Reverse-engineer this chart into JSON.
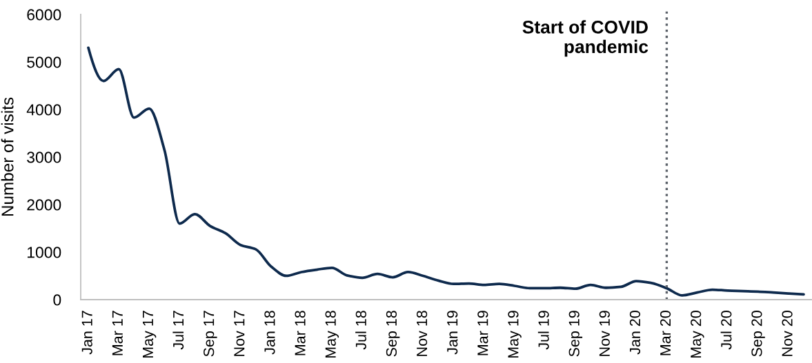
{
  "chart_data": {
    "type": "line",
    "ylabel": "Number of visits",
    "categories": [
      "Jan 17",
      null,
      "Mar 17",
      null,
      "May 17",
      null,
      "Jul 17",
      null,
      "Sep 17",
      null,
      "Nov 17",
      null,
      "Jan 18",
      null,
      "Mar 18",
      null,
      "May 18",
      null,
      "Jul 18",
      null,
      "Sep 18",
      null,
      "Nov 18",
      null,
      "Jan 19",
      null,
      "Mar 19",
      null,
      "May 19",
      null,
      "Jul 19",
      null,
      "Sep 19",
      null,
      "Nov 19",
      null,
      "Jan 20",
      null,
      "Mar 20",
      null,
      "May 20",
      null,
      "Jul 20",
      null,
      "Sep 20",
      null,
      "Nov 20",
      null
    ],
    "series": [
      {
        "color": "#0e2a4d",
        "values": [
          5300,
          4600,
          4850,
          3830,
          4020,
          3150,
          1600,
          1800,
          1550,
          1400,
          1150,
          1060,
          700,
          500,
          580,
          630,
          670,
          510,
          460,
          540,
          470,
          580,
          500,
          400,
          330,
          340,
          310,
          330,
          290,
          240,
          240,
          250,
          230,
          310,
          250,
          270,
          390,
          350,
          240,
          90,
          150,
          210,
          190,
          180,
          170,
          150,
          130,
          110
        ]
      }
    ],
    "ylim": [
      0,
      6000
    ],
    "yticks": [
      0,
      1000,
      2000,
      3000,
      4000,
      5000,
      6000
    ],
    "line_style": "solid",
    "ref_lines": [
      {
        "axis": "x",
        "value": "Mar 20",
        "label": "Start of COVID\npandemic",
        "color": "#5b6169",
        "line_style": "dotted"
      }
    ]
  }
}
